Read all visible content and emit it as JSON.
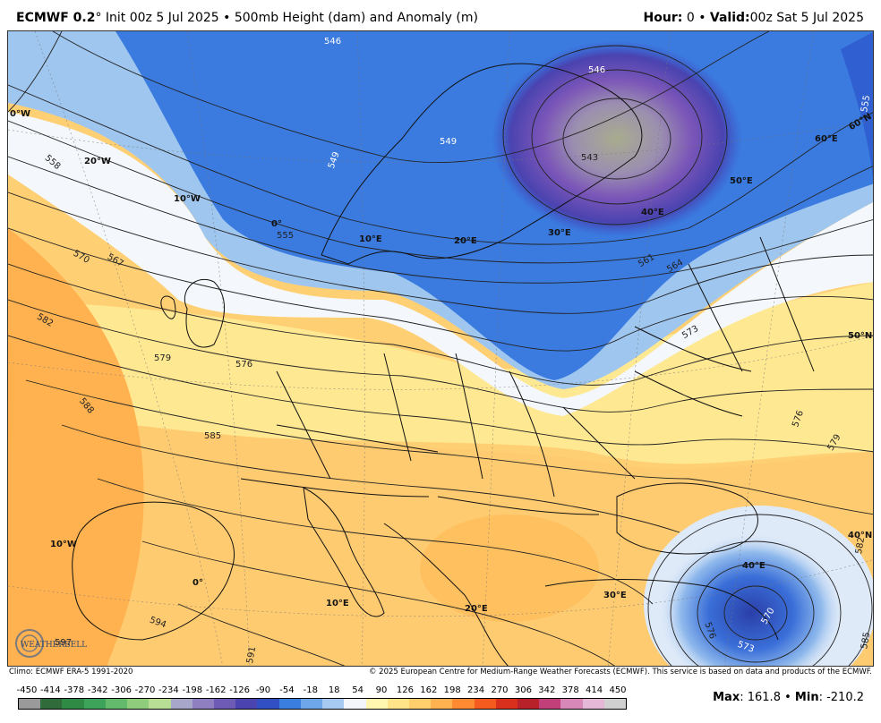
{
  "header": {
    "model": "ECMWF 0.2",
    "degree": "°",
    "init": "Init 00z 5 Jul 2025",
    "bullet": "•",
    "product": "500mb Height (dam) and Anomaly (m)",
    "hour_label": "Hour:",
    "hour_value": "0",
    "valid_label": "Valid:",
    "valid_value": "00z Sat 5 Jul 2025"
  },
  "map": {
    "lon_labels": [
      "0°W",
      "20°W",
      "10°W",
      "0°",
      "10°E",
      "20°E",
      "30°E",
      "40°E",
      "50°E",
      "60°E",
      "10°W",
      "0°",
      "10°E",
      "20°E",
      "30°E",
      "40°E"
    ],
    "lat_labels": [
      "60°N",
      "50°N",
      "40°N"
    ],
    "contour_labels": [
      "546",
      "549",
      "549",
      "546",
      "543",
      "555",
      "558",
      "570",
      "567",
      "582",
      "579",
      "576",
      "588",
      "585",
      "561",
      "564",
      "573",
      "576",
      "579",
      "582",
      "594",
      "597",
      "591",
      "576",
      "570",
      "573",
      "585",
      "555"
    ],
    "colors": {
      "deep_blue": "#2f3fb8",
      "blue": "#3b7be0",
      "light_blue": "#9fc6ef",
      "white": "#f4f7fb",
      "yellow": "#fff3a6",
      "light_orange": "#ffd27a",
      "orange": "#ffae48",
      "dark_orange": "#ff7a24",
      "purple": "#7b56b8",
      "olive": "#a9ac8e"
    }
  },
  "credits": {
    "climo": "Climo: ECMWF ERA-5 1991-2020",
    "copyright": "© 2025 European Centre for Medium-Range Weather Forecasts (ECMWF). This service is based on data and products of the ECMWF."
  },
  "logo": {
    "text": "WEATHERBELL"
  },
  "colorbar": {
    "labels": [
      "-450",
      "-414",
      "-378",
      "-342",
      "-306",
      "-270",
      "-234",
      "-198",
      "-162",
      "-126",
      "-90",
      "-54",
      "-18",
      "18",
      "54",
      "90",
      "126",
      "162",
      "198",
      "234",
      "270",
      "306",
      "342",
      "378",
      "414",
      "450"
    ],
    "colors": [
      "#9a9a9a",
      "#2f6b3b",
      "#2f8a46",
      "#3ea35a",
      "#63b96c",
      "#8fcc7c",
      "#b8dd94",
      "#a7a7c9",
      "#8f7fc0",
      "#6e5bb5",
      "#4a43b0",
      "#3150c4",
      "#3a7ee0",
      "#6fa8ea",
      "#a6caf2",
      "#f3f6fb",
      "#fff6b0",
      "#ffe48a",
      "#ffcf6e",
      "#ffb24f",
      "#ff8a32",
      "#f55a1f",
      "#d8301c",
      "#b8202a",
      "#c2407a",
      "#d888b8",
      "#e6b8d8",
      "#d0d0d0"
    ]
  },
  "stats": {
    "max_label": "Max",
    "max_value": ": 161.8",
    "bullet": "•",
    "min_label": "Min",
    "min_value": ": -210.2"
  }
}
